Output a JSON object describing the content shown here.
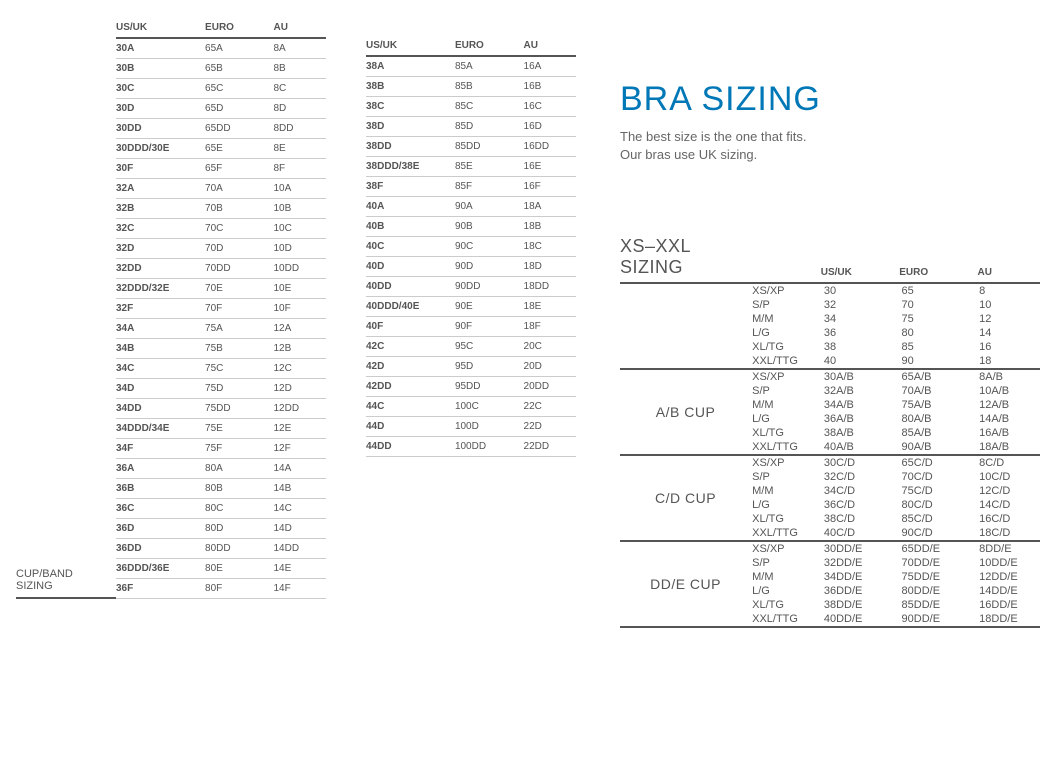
{
  "colors": {
    "accent": "#0077b6",
    "text": "#555555",
    "rule_thin": "#cccccc",
    "rule_thick": "#555555",
    "background": "#ffffff"
  },
  "typography": {
    "title_fontsize": 34,
    "section_fontsize": 18,
    "body_fontsize": 10,
    "tagline_fontsize": 13
  },
  "headers": {
    "usuk": "US/UK",
    "euro": "EURO",
    "au": "AU"
  },
  "cupband": {
    "title_line1": "CUP/BAND",
    "title_line2": "SIZING"
  },
  "main": {
    "title": "BRA SIZING",
    "tagline1": "The best size is the one that fits.",
    "tagline2": "Our bras use UK sizing."
  },
  "xs": {
    "title": "XS–XXL SIZING"
  },
  "table_left": {
    "type": "table",
    "columns": [
      "US/UK",
      "EURO",
      "AU"
    ],
    "rows": [
      [
        "30A",
        "65A",
        "8A"
      ],
      [
        "30B",
        "65B",
        "8B"
      ],
      [
        "30C",
        "65C",
        "8C"
      ],
      [
        "30D",
        "65D",
        "8D"
      ],
      [
        "30DD",
        "65DD",
        "8DD"
      ],
      [
        "30DDD/30E",
        "65E",
        "8E"
      ],
      [
        "30F",
        "65F",
        "8F"
      ],
      [
        "32A",
        "70A",
        "10A"
      ],
      [
        "32B",
        "70B",
        "10B"
      ],
      [
        "32C",
        "70C",
        "10C"
      ],
      [
        "32D",
        "70D",
        "10D"
      ],
      [
        "32DD",
        "70DD",
        "10DD"
      ],
      [
        "32DDD/32E",
        "70E",
        "10E"
      ],
      [
        "32F",
        "70F",
        "10F"
      ],
      [
        "34A",
        "75A",
        "12A"
      ],
      [
        "34B",
        "75B",
        "12B"
      ],
      [
        "34C",
        "75C",
        "12C"
      ],
      [
        "34D",
        "75D",
        "12D"
      ],
      [
        "34DD",
        "75DD",
        "12DD"
      ],
      [
        "34DDD/34E",
        "75E",
        "12E"
      ],
      [
        "34F",
        "75F",
        "12F"
      ],
      [
        "36A",
        "80A",
        "14A"
      ],
      [
        "36B",
        "80B",
        "14B"
      ],
      [
        "36C",
        "80C",
        "14C"
      ],
      [
        "36D",
        "80D",
        "14D"
      ],
      [
        "36DD",
        "80DD",
        "14DD"
      ],
      [
        "36DDD/36E",
        "80E",
        "14E"
      ],
      [
        "36F",
        "80F",
        "14F"
      ]
    ]
  },
  "table_mid": {
    "type": "table",
    "columns": [
      "US/UK",
      "EURO",
      "AU"
    ],
    "rows": [
      [
        "38A",
        "85A",
        "16A"
      ],
      [
        "38B",
        "85B",
        "16B"
      ],
      [
        "38C",
        "85C",
        "16C"
      ],
      [
        "38D",
        "85D",
        "16D"
      ],
      [
        "38DD",
        "85DD",
        "16DD"
      ],
      [
        "38DDD/38E",
        "85E",
        "16E"
      ],
      [
        "38F",
        "85F",
        "16F"
      ],
      [
        "40A",
        "90A",
        "18A"
      ],
      [
        "40B",
        "90B",
        "18B"
      ],
      [
        "40C",
        "90C",
        "18C"
      ],
      [
        "40D",
        "90D",
        "18D"
      ],
      [
        "40DD",
        "90DD",
        "18DD"
      ],
      [
        "40DDD/40E",
        "90E",
        "18E"
      ],
      [
        "40F",
        "90F",
        "18F"
      ],
      [
        "42C",
        "95C",
        "20C"
      ],
      [
        "42D",
        "95D",
        "20D"
      ],
      [
        "42DD",
        "95DD",
        "20DD"
      ],
      [
        "44C",
        "100C",
        "22C"
      ],
      [
        "44D",
        "100D",
        "22D"
      ],
      [
        "44DD",
        "100DD",
        "22DD"
      ]
    ]
  },
  "table_xs": {
    "type": "grouped-table",
    "columns": [
      "",
      "US/UK",
      "EURO",
      "AU"
    ],
    "groups": [
      {
        "label": "",
        "rows": [
          [
            "XS/XP",
            "30",
            "65",
            "8"
          ],
          [
            "S/P",
            "32",
            "70",
            "10"
          ],
          [
            "M/M",
            "34",
            "75",
            "12"
          ],
          [
            "L/G",
            "36",
            "80",
            "14"
          ],
          [
            "XL/TG",
            "38",
            "85",
            "16"
          ],
          [
            "XXL/TTG",
            "40",
            "90",
            "18"
          ]
        ]
      },
      {
        "label": "A/B CUP",
        "rows": [
          [
            "XS/XP",
            "30A/B",
            "65A/B",
            "8A/B"
          ],
          [
            "S/P",
            "32A/B",
            "70A/B",
            "10A/B"
          ],
          [
            "M/M",
            "34A/B",
            "75A/B",
            "12A/B"
          ],
          [
            "L/G",
            "36A/B",
            "80A/B",
            "14A/B"
          ],
          [
            "XL/TG",
            "38A/B",
            "85A/B",
            "16A/B"
          ],
          [
            "XXL/TTG",
            "40A/B",
            "90A/B",
            "18A/B"
          ]
        ]
      },
      {
        "label": "C/D CUP",
        "rows": [
          [
            "XS/XP",
            "30C/D",
            "65C/D",
            "8C/D"
          ],
          [
            "S/P",
            "32C/D",
            "70C/D",
            "10C/D"
          ],
          [
            "M/M",
            "34C/D",
            "75C/D",
            "12C/D"
          ],
          [
            "L/G",
            "36C/D",
            "80C/D",
            "14C/D"
          ],
          [
            "XL/TG",
            "38C/D",
            "85C/D",
            "16C/D"
          ],
          [
            "XXL/TTG",
            "40C/D",
            "90C/D",
            "18C/D"
          ]
        ]
      },
      {
        "label": "DD/E CUP",
        "rows": [
          [
            "XS/XP",
            "30DD/E",
            "65DD/E",
            "8DD/E"
          ],
          [
            "S/P",
            "32DD/E",
            "70DD/E",
            "10DD/E"
          ],
          [
            "M/M",
            "34DD/E",
            "75DD/E",
            "12DD/E"
          ],
          [
            "L/G",
            "36DD/E",
            "80DD/E",
            "14DD/E"
          ],
          [
            "XL/TG",
            "38DD/E",
            "85DD/E",
            "16DD/E"
          ],
          [
            "XXL/TTG",
            "40DD/E",
            "90DD/E",
            "18DD/E"
          ]
        ]
      }
    ]
  }
}
